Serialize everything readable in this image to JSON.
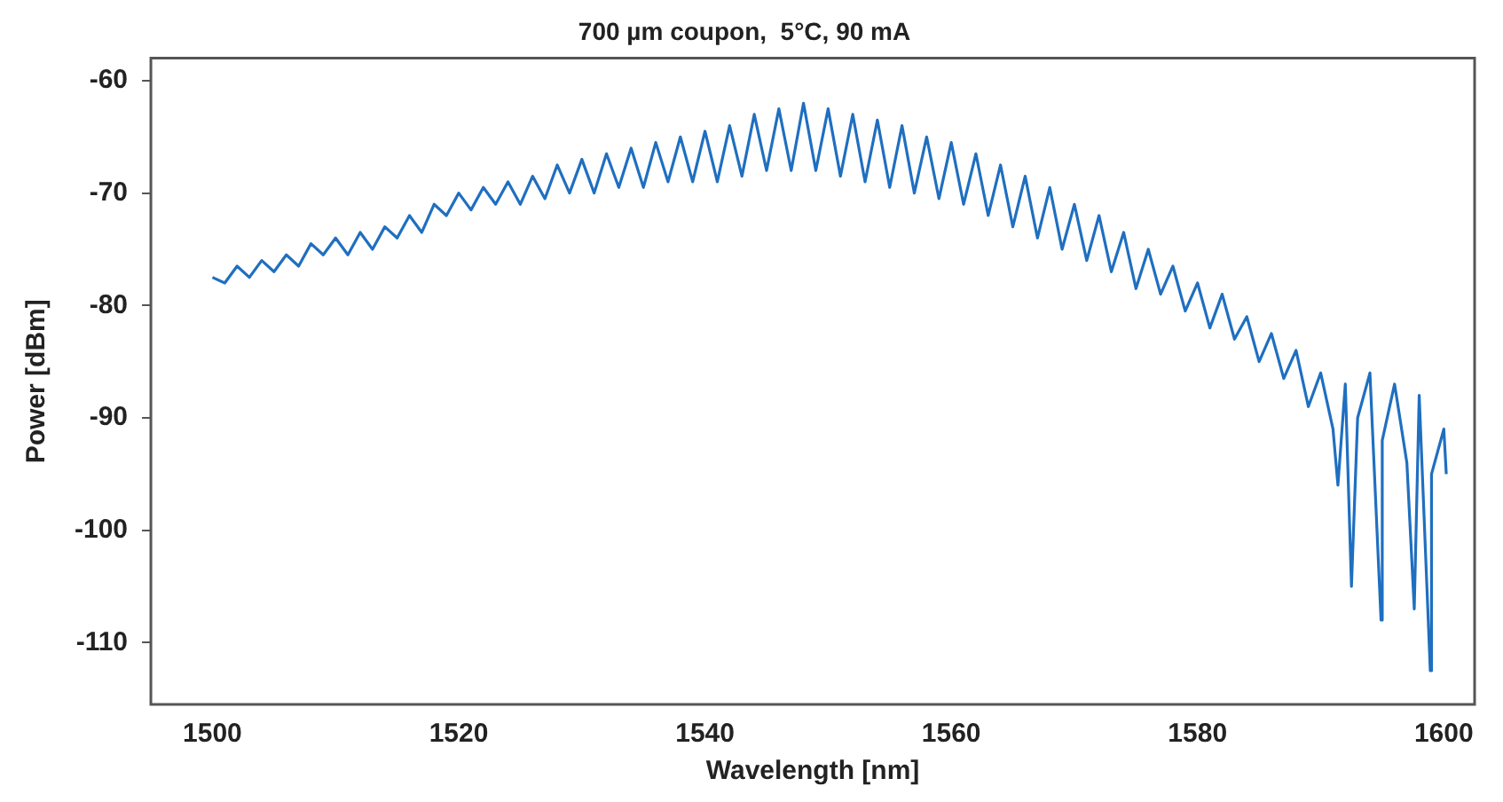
{
  "chart_data": {
    "type": "line",
    "title": "700 µm coupon,  5°C, 90 mA",
    "xlabel": "Wavelength [nm]",
    "ylabel": "Power [dBm]",
    "xlim": [
      1495,
      1602.5
    ],
    "xticks": [
      1500,
      1520,
      1540,
      1560,
      1580,
      1600
    ],
    "ylim": [
      -115.5,
      -58
    ],
    "yticks": [
      -110,
      -100,
      -90,
      -80,
      -70,
      -60
    ],
    "grid": false,
    "legend": false,
    "marker": "none",
    "line_style": "solid",
    "series": [
      {
        "color": "#1f6fc0",
        "x": [
          1500,
          1501,
          1502,
          1503,
          1504,
          1505,
          1506,
          1507,
          1508,
          1509,
          1510,
          1511,
          1512,
          1513,
          1514,
          1515,
          1516,
          1517,
          1518,
          1519,
          1520,
          1521,
          1522,
          1523,
          1524,
          1525,
          1526,
          1527,
          1528,
          1529,
          1530,
          1531,
          1532,
          1533,
          1534,
          1535,
          1536,
          1537,
          1538,
          1539,
          1540,
          1541,
          1542,
          1543,
          1544,
          1545,
          1546,
          1547,
          1548,
          1549,
          1550,
          1551,
          1552,
          1553,
          1554,
          1555,
          1556,
          1557,
          1558,
          1559,
          1560,
          1561,
          1562,
          1563,
          1564,
          1565,
          1566,
          1567,
          1568,
          1569,
          1570,
          1571,
          1572,
          1573,
          1574,
          1575,
          1576,
          1577,
          1578,
          1579,
          1580,
          1581,
          1582,
          1583,
          1584,
          1585,
          1586,
          1587,
          1588,
          1589,
          1590,
          1591,
          1591.4,
          1592,
          1592.5,
          1593,
          1594,
          1594.9,
          1595,
          1596,
          1597,
          1597.6,
          1598,
          1598.9,
          1599,
          1600,
          1600.2
        ],
        "values": [
          -77.5,
          -78,
          -76.5,
          -77.5,
          -76,
          -77,
          -75.5,
          -76.5,
          -74.5,
          -75.5,
          -74,
          -75.5,
          -73.5,
          -75,
          -73,
          -74,
          -72,
          -73.5,
          -71,
          -72,
          -70,
          -71.5,
          -69.5,
          -71,
          -69,
          -71,
          -68.5,
          -70.5,
          -67.5,
          -70,
          -67,
          -70,
          -66.5,
          -69.5,
          -66,
          -69.5,
          -65.5,
          -69,
          -65,
          -69,
          -64.5,
          -69,
          -64,
          -68.5,
          -63,
          -68,
          -62.5,
          -68,
          -62,
          -68,
          -62.5,
          -68.5,
          -63,
          -69,
          -63.5,
          -69.5,
          -64,
          -70,
          -65,
          -70.5,
          -65.5,
          -71,
          -66.5,
          -72,
          -67.5,
          -73,
          -68.5,
          -74,
          -69.5,
          -75,
          -71,
          -76,
          -72,
          -77,
          -73.5,
          -78.5,
          -75,
          -79,
          -76.5,
          -80.5,
          -78,
          -82,
          -79,
          -83,
          -81,
          -85,
          -82.5,
          -86.5,
          -84,
          -89,
          -86,
          -91,
          -96,
          -87,
          -105,
          -90,
          -86,
          -108,
          -92,
          -87,
          -94,
          -107,
          -88,
          -112.5,
          -95,
          -91,
          -95
        ]
      }
    ]
  }
}
